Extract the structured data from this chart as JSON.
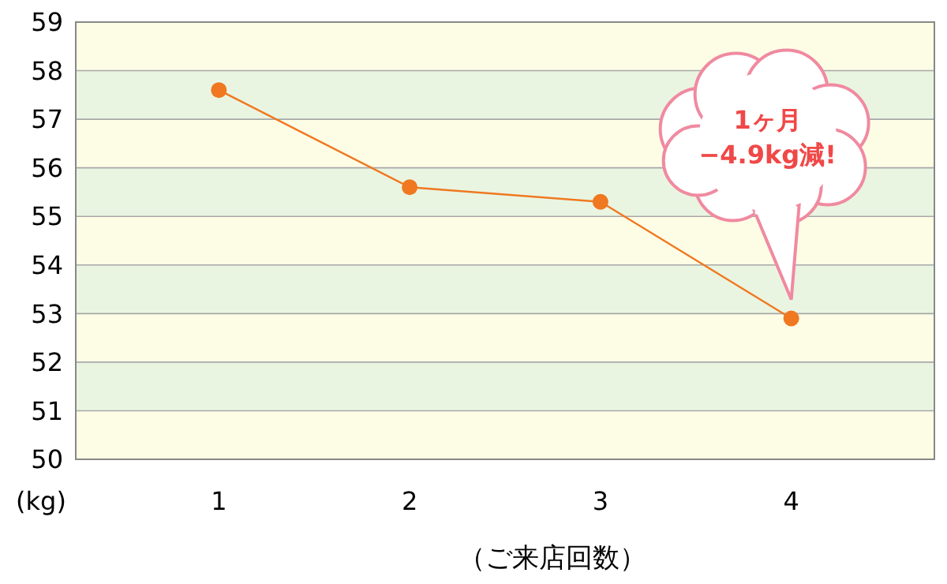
{
  "chart_data": {
    "type": "line",
    "xlabel": "（ご来店回数）",
    "ylabel": "(kg)",
    "categories": [
      "1",
      "2",
      "3",
      "4"
    ],
    "series": [
      {
        "color": "#f07820",
        "values": [
          57.6,
          55.6,
          55.3,
          52.9
        ]
      }
    ],
    "ylim": [
      50,
      59
    ],
    "yticks": [
      50,
      51,
      52,
      53,
      54,
      55,
      56,
      57,
      58,
      59
    ],
    "grid": "y",
    "marker": "circle",
    "bands": [
      {
        "axis": "y",
        "from": 50,
        "to": 51,
        "color": "#fdfde6"
      },
      {
        "axis": "y",
        "from": 51,
        "to": 52,
        "color": "#e9f5e1"
      },
      {
        "axis": "y",
        "from": 52,
        "to": 53,
        "color": "#fdfde6"
      },
      {
        "axis": "y",
        "from": 53,
        "to": 54,
        "color": "#e9f5e1"
      },
      {
        "axis": "y",
        "from": 54,
        "to": 55,
        "color": "#fdfde6"
      },
      {
        "axis": "y",
        "from": 55,
        "to": 56,
        "color": "#e9f5e1"
      },
      {
        "axis": "y",
        "from": 56,
        "to": 57,
        "color": "#fdfde6"
      },
      {
        "axis": "y",
        "from": 57,
        "to": 58,
        "color": "#e9f5e1"
      },
      {
        "axis": "y",
        "from": 58,
        "to": 59,
        "color": "#fdfde6"
      }
    ],
    "annotations": [
      "1ヶ月\n−4.9kg減!"
    ]
  }
}
